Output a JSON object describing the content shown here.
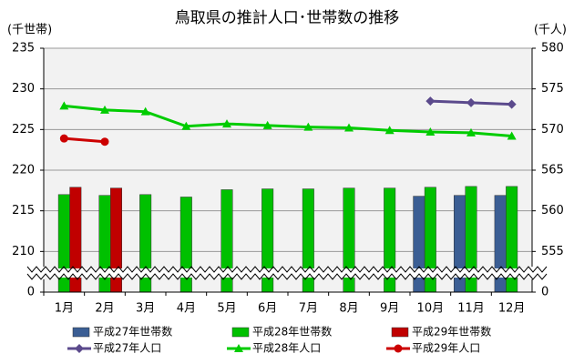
{
  "chart_data": {
    "type": "bar",
    "title": "鳥取県の推計人口･世帯数の推移",
    "y_label": "(千世帯)",
    "y2_label": "(千人)",
    "categories": [
      "1月",
      "2月",
      "3月",
      "4月",
      "5月",
      "6月",
      "7月",
      "8月",
      "9月",
      "10月",
      "11月",
      "12月"
    ],
    "ylim": [
      205,
      235
    ],
    "yticks": [
      0,
      210,
      215,
      220,
      225,
      230,
      235
    ],
    "y2lim": [
      550,
      580
    ],
    "y2ticks": [
      0,
      555,
      560,
      565,
      570,
      575,
      580
    ],
    "axis_break": true,
    "grid": true,
    "series": [
      {
        "name": "平成27年世帯数",
        "type": "bar",
        "color": "#3b5e94",
        "values": [
          null,
          null,
          null,
          null,
          null,
          null,
          null,
          null,
          null,
          216.8,
          216.9,
          216.9
        ]
      },
      {
        "name": "平成28年世帯数",
        "type": "bar",
        "color": "#00c000",
        "values": [
          217.0,
          216.9,
          217.0,
          216.7,
          217.6,
          217.7,
          217.7,
          217.8,
          217.8,
          217.9,
          218.0,
          218.0
        ]
      },
      {
        "name": "平成29年世帯数",
        "type": "bar",
        "color": "#c00000",
        "values": [
          217.9,
          217.8,
          null,
          null,
          null,
          null,
          null,
          null,
          null,
          null,
          null,
          null
        ]
      },
      {
        "name": "平成27年人口",
        "type": "line",
        "axis": "y2",
        "marker": "diamond",
        "color": "#5b4a8c",
        "values": [
          null,
          null,
          null,
          null,
          null,
          null,
          null,
          null,
          null,
          573.5,
          573.3,
          573.1
        ]
      },
      {
        "name": "平成28年人口",
        "type": "line",
        "axis": "y2",
        "marker": "triangle",
        "color": "#00cc00",
        "values": [
          572.9,
          572.4,
          572.2,
          570.4,
          570.7,
          570.5,
          570.3,
          570.2,
          569.9,
          569.7,
          569.6,
          569.2
        ]
      },
      {
        "name": "平成29年人口",
        "type": "line",
        "axis": "y2",
        "marker": "circle",
        "color": "#cc0000",
        "values": [
          568.9,
          568.5,
          null,
          null,
          null,
          null,
          null,
          null,
          null,
          null,
          null,
          null
        ]
      }
    ]
  }
}
